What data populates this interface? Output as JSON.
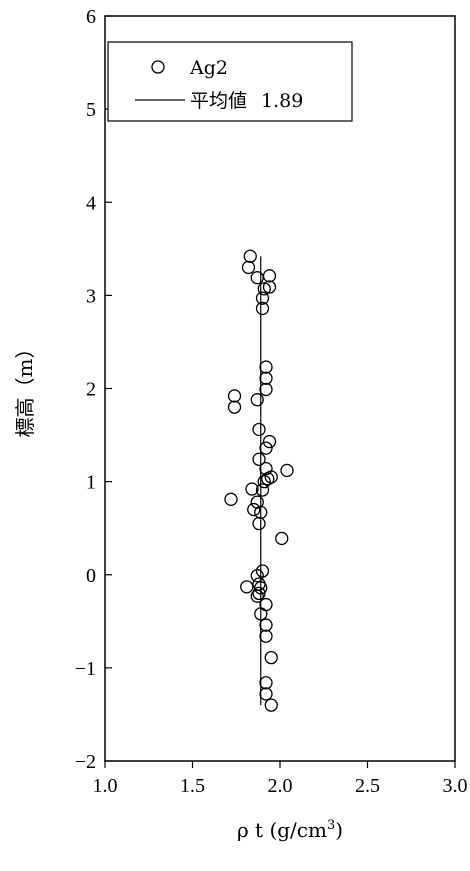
{
  "chart_data": {
    "type": "scatter",
    "xlabel": "ρ t (g/cm",
    "xlabel_sup": "3",
    "xlabel_close": ")",
    "ylabel": "標高（m）",
    "xlim": [
      1.0,
      3.0
    ],
    "ylim": [
      -2,
      6
    ],
    "x_ticks": [
      1.0,
      1.5,
      2.0,
      2.5,
      3.0
    ],
    "x_tick_labels": [
      "1.0",
      "1.5",
      "2.0",
      "2.5",
      "3.0"
    ],
    "y_ticks": [
      -2,
      -1,
      0,
      1,
      2,
      3,
      4,
      5,
      6
    ],
    "y_tick_labels": [
      "−2",
      "−1",
      "0",
      "1",
      "2",
      "3",
      "4",
      "5",
      "6"
    ],
    "grid": false,
    "legend": {
      "position": "top-left",
      "scatter_label": "Ag2",
      "line_label": "平均値",
      "line_value": "1.89"
    },
    "series": [
      {
        "name": "Ag2",
        "marker": "open-circle",
        "points": [
          [
            1.83,
            3.42
          ],
          [
            1.82,
            3.3
          ],
          [
            1.87,
            3.19
          ],
          [
            1.94,
            3.21
          ],
          [
            1.94,
            3.09
          ],
          [
            1.91,
            3.07
          ],
          [
            1.9,
            2.97
          ],
          [
            1.9,
            2.86
          ],
          [
            1.92,
            2.23
          ],
          [
            1.92,
            2.11
          ],
          [
            1.92,
            1.99
          ],
          [
            1.87,
            1.88
          ],
          [
            1.74,
            1.92
          ],
          [
            1.74,
            1.8
          ],
          [
            1.88,
            1.56
          ],
          [
            1.94,
            1.43
          ],
          [
            1.92,
            1.36
          ],
          [
            1.88,
            1.24
          ],
          [
            1.92,
            1.14
          ],
          [
            2.04,
            1.12
          ],
          [
            1.95,
            1.05
          ],
          [
            1.93,
            1.03
          ],
          [
            1.91,
            1.0
          ],
          [
            1.9,
            0.91
          ],
          [
            1.84,
            0.92
          ],
          [
            1.72,
            0.81
          ],
          [
            1.87,
            0.78
          ],
          [
            1.85,
            0.7
          ],
          [
            1.89,
            0.67
          ],
          [
            1.88,
            0.55
          ],
          [
            2.01,
            0.39
          ],
          [
            1.9,
            0.04
          ],
          [
            1.87,
            -0.01
          ],
          [
            1.88,
            -0.1
          ],
          [
            1.81,
            -0.13
          ],
          [
            1.89,
            -0.14
          ],
          [
            1.88,
            -0.2
          ],
          [
            1.87,
            -0.23
          ],
          [
            1.92,
            -0.32
          ],
          [
            1.89,
            -0.42
          ],
          [
            1.92,
            -0.54
          ],
          [
            1.92,
            -0.66
          ],
          [
            1.95,
            -0.89
          ],
          [
            1.92,
            -1.16
          ],
          [
            1.92,
            -1.28
          ],
          [
            1.95,
            -1.4
          ]
        ]
      },
      {
        "name": "平均値",
        "type": "line",
        "x": [
          1.89,
          1.89
        ],
        "y": [
          -1.4,
          3.42
        ]
      }
    ]
  }
}
